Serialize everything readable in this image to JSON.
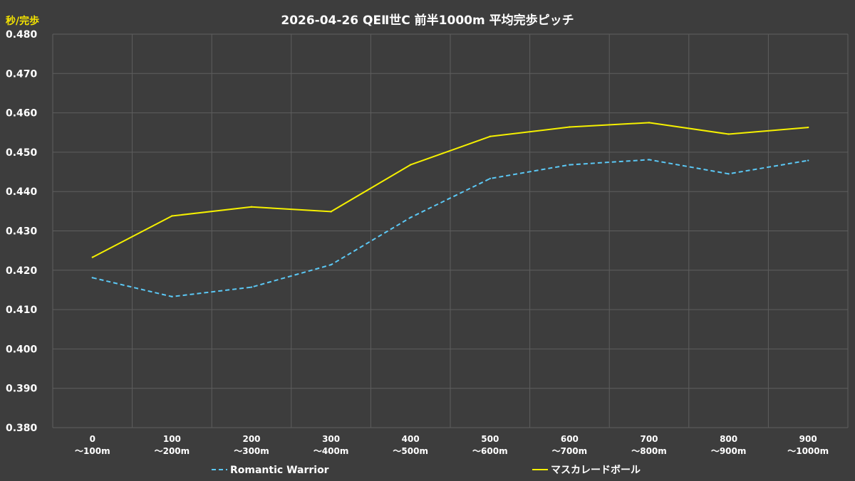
{
  "chart_data": {
    "type": "line",
    "title": "2026-04-26 QEⅡ世C 前半1000m 平均完歩ピッチ",
    "ylabel": "秒/完歩",
    "xlabel": "",
    "ylim": [
      0.38,
      0.48
    ],
    "yticks": [
      "0.480",
      "0.470",
      "0.460",
      "0.450",
      "0.440",
      "0.430",
      "0.420",
      "0.410",
      "0.400",
      "0.390",
      "0.380"
    ],
    "ytick_values": [
      0.48,
      0.47,
      0.46,
      0.45,
      0.44,
      0.43,
      0.42,
      0.41,
      0.4,
      0.39,
      0.38
    ],
    "categories": [
      [
        "0",
        "～100m"
      ],
      [
        "100",
        "～200m"
      ],
      [
        "200",
        "～300m"
      ],
      [
        "300",
        "～400m"
      ],
      [
        "400",
        "～500m"
      ],
      [
        "500",
        "～600m"
      ],
      [
        "600",
        "～700m"
      ],
      [
        "700",
        "～800m"
      ],
      [
        "800",
        "～900m"
      ],
      [
        "900",
        "～1000m"
      ]
    ],
    "grid": true,
    "legend_position": "bottom",
    "series": [
      {
        "name": "Romantic Warrior",
        "color": "#5bc8f5",
        "dash": "dashed",
        "values": [
          0.4181,
          0.4133,
          0.4157,
          0.4214,
          0.4334,
          0.4433,
          0.4468,
          0.4481,
          0.4445,
          0.4479
        ]
      },
      {
        "name": "マスカレードボール",
        "color": "#f5f000",
        "dash": "solid",
        "values": [
          0.4233,
          0.4338,
          0.4361,
          0.4349,
          0.4468,
          0.454,
          0.4564,
          0.4575,
          0.4546,
          0.4563
        ]
      }
    ]
  }
}
